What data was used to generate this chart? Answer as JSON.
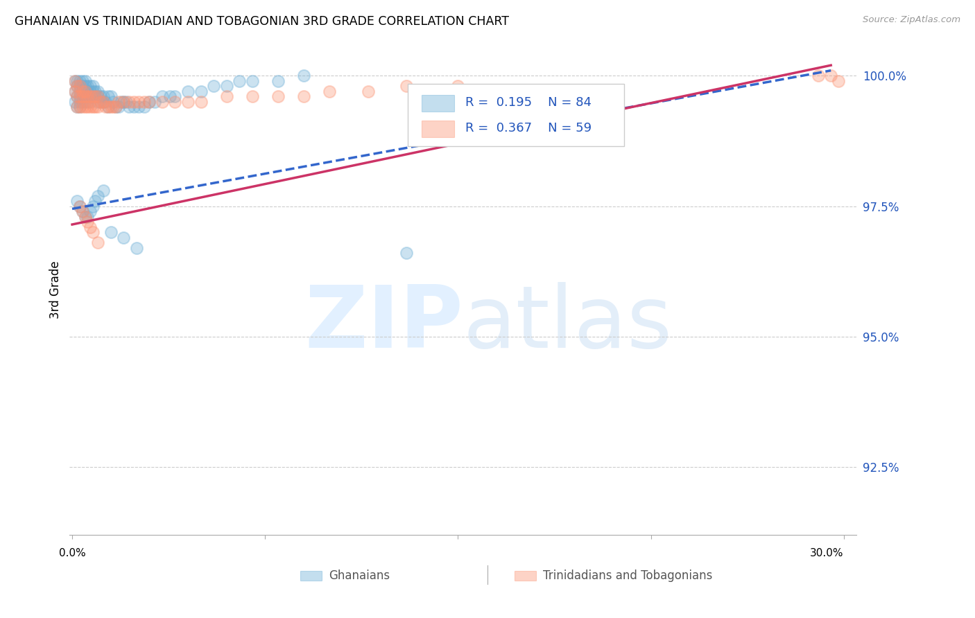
{
  "title": "GHANAIAN VS TRINIDADIAN AND TOBAGONIAN 3RD GRADE CORRELATION CHART",
  "source": "Source: ZipAtlas.com",
  "ylabel": "3rd Grade",
  "ytick_labels": [
    "100.0%",
    "97.5%",
    "95.0%",
    "92.5%"
  ],
  "ytick_values": [
    1.0,
    0.975,
    0.95,
    0.925
  ],
  "xlim": [
    -0.001,
    0.305
  ],
  "ylim": [
    0.912,
    1.006
  ],
  "blue_color": "#6baed6",
  "pink_color": "#fc9272",
  "blue_line_color": "#3366cc",
  "pink_line_color": "#cc3366",
  "text_blue_color": "#2255bb",
  "grid_color": "#cccccc",
  "blue_line_x": [
    0.0,
    0.295
  ],
  "blue_line_y": [
    0.9745,
    1.001
  ],
  "pink_line_x": [
    0.0,
    0.295
  ],
  "pink_line_y": [
    0.9715,
    1.002
  ],
  "blue_scatter_x": [
    0.001,
    0.001,
    0.001,
    0.002,
    0.002,
    0.002,
    0.002,
    0.003,
    0.003,
    0.003,
    0.003,
    0.003,
    0.003,
    0.004,
    0.004,
    0.004,
    0.004,
    0.004,
    0.005,
    0.005,
    0.005,
    0.005,
    0.005,
    0.006,
    0.006,
    0.006,
    0.006,
    0.007,
    0.007,
    0.007,
    0.007,
    0.008,
    0.008,
    0.008,
    0.009,
    0.009,
    0.01,
    0.01,
    0.01,
    0.011,
    0.011,
    0.012,
    0.012,
    0.013,
    0.014,
    0.014,
    0.015,
    0.016,
    0.017,
    0.018,
    0.019,
    0.02,
    0.021,
    0.022,
    0.024,
    0.026,
    0.028,
    0.03,
    0.032,
    0.035,
    0.038,
    0.04,
    0.045,
    0.05,
    0.055,
    0.06,
    0.065,
    0.07,
    0.08,
    0.09,
    0.002,
    0.003,
    0.004,
    0.005,
    0.006,
    0.007,
    0.008,
    0.009,
    0.01,
    0.012,
    0.015,
    0.02,
    0.025,
    0.13
  ],
  "blue_scatter_y": [
    0.999,
    0.997,
    0.995,
    0.999,
    0.998,
    0.996,
    0.994,
    0.999,
    0.998,
    0.997,
    0.996,
    0.995,
    0.994,
    0.999,
    0.998,
    0.997,
    0.996,
    0.995,
    0.999,
    0.998,
    0.997,
    0.996,
    0.995,
    0.998,
    0.997,
    0.996,
    0.995,
    0.998,
    0.997,
    0.996,
    0.995,
    0.998,
    0.997,
    0.996,
    0.997,
    0.996,
    0.997,
    0.996,
    0.995,
    0.996,
    0.995,
    0.996,
    0.995,
    0.995,
    0.996,
    0.994,
    0.996,
    0.995,
    0.994,
    0.994,
    0.995,
    0.995,
    0.995,
    0.994,
    0.994,
    0.994,
    0.994,
    0.995,
    0.995,
    0.996,
    0.996,
    0.996,
    0.997,
    0.997,
    0.998,
    0.998,
    0.999,
    0.999,
    0.999,
    1.0,
    0.976,
    0.975,
    0.974,
    0.973,
    0.973,
    0.974,
    0.975,
    0.976,
    0.977,
    0.978,
    0.97,
    0.969,
    0.967,
    0.966
  ],
  "pink_scatter_x": [
    0.001,
    0.001,
    0.002,
    0.002,
    0.002,
    0.003,
    0.003,
    0.003,
    0.004,
    0.004,
    0.004,
    0.005,
    0.005,
    0.005,
    0.006,
    0.006,
    0.007,
    0.007,
    0.008,
    0.008,
    0.009,
    0.009,
    0.01,
    0.01,
    0.011,
    0.012,
    0.013,
    0.014,
    0.015,
    0.016,
    0.017,
    0.018,
    0.02,
    0.022,
    0.024,
    0.026,
    0.028,
    0.03,
    0.035,
    0.04,
    0.045,
    0.05,
    0.06,
    0.07,
    0.08,
    0.09,
    0.1,
    0.115,
    0.13,
    0.15,
    0.003,
    0.004,
    0.005,
    0.006,
    0.007,
    0.008,
    0.01,
    0.29,
    0.295,
    0.298
  ],
  "pink_scatter_y": [
    0.999,
    0.997,
    0.998,
    0.996,
    0.994,
    0.998,
    0.996,
    0.994,
    0.997,
    0.996,
    0.994,
    0.997,
    0.996,
    0.994,
    0.996,
    0.994,
    0.996,
    0.994,
    0.996,
    0.994,
    0.996,
    0.994,
    0.996,
    0.994,
    0.995,
    0.995,
    0.994,
    0.994,
    0.994,
    0.994,
    0.994,
    0.995,
    0.995,
    0.995,
    0.995,
    0.995,
    0.995,
    0.995,
    0.995,
    0.995,
    0.995,
    0.995,
    0.996,
    0.996,
    0.996,
    0.996,
    0.997,
    0.997,
    0.998,
    0.998,
    0.975,
    0.974,
    0.973,
    0.972,
    0.971,
    0.97,
    0.968,
    1.0,
    1.0,
    0.999
  ]
}
